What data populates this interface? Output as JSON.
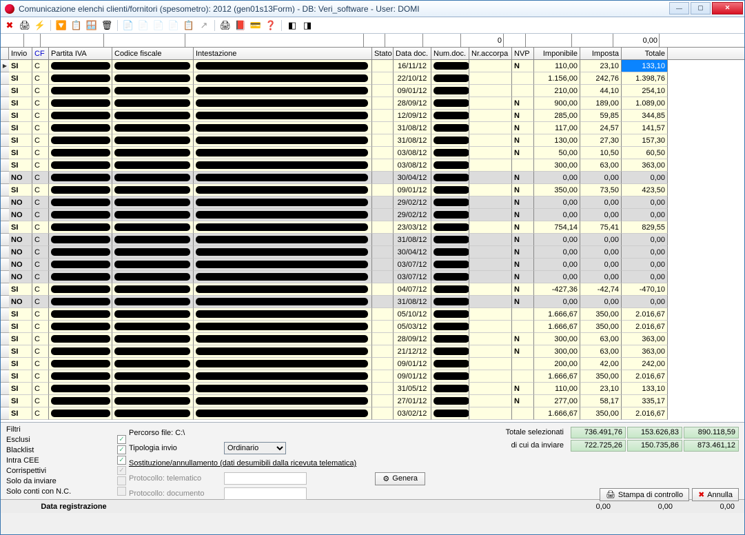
{
  "window": {
    "title": "Comunicazione elenchi clienti/fornitori (spesometro): 2012  (gen01s13Form) - DB: Veri_software - User: DOMI"
  },
  "filter_row": {
    "zero": "0",
    "zerozero": "0,00"
  },
  "columns": [
    "Invio",
    "CF",
    "Partita IVA",
    "Codice fiscale",
    "Intestazione",
    "Stato",
    "Data doc.",
    "Num.doc.",
    "Nr.accorpa",
    "NVP",
    "Imponibile",
    "Imposta",
    "Totale"
  ],
  "rows": [
    {
      "invio": "SI",
      "cf": "C",
      "data": "16/11/12",
      "nvp": "N",
      "imp": "110,00",
      "tax": "23,10",
      "tot": "133,10",
      "sel": true
    },
    {
      "invio": "SI",
      "cf": "C",
      "data": "22/10/12",
      "nvp": "",
      "imp": "1.156,00",
      "tax": "242,76",
      "tot": "1.398,76"
    },
    {
      "invio": "SI",
      "cf": "C",
      "data": "09/01/12",
      "nvp": "",
      "imp": "210,00",
      "tax": "44,10",
      "tot": "254,10"
    },
    {
      "invio": "SI",
      "cf": "C",
      "data": "28/09/12",
      "nvp": "N",
      "imp": "900,00",
      "tax": "189,00",
      "tot": "1.089,00"
    },
    {
      "invio": "SI",
      "cf": "C",
      "data": "12/09/12",
      "nvp": "N",
      "imp": "285,00",
      "tax": "59,85",
      "tot": "344,85"
    },
    {
      "invio": "SI",
      "cf": "C",
      "data": "31/08/12",
      "nvp": "N",
      "imp": "117,00",
      "tax": "24,57",
      "tot": "141,57"
    },
    {
      "invio": "SI",
      "cf": "C",
      "data": "31/08/12",
      "nvp": "N",
      "imp": "130,00",
      "tax": "27,30",
      "tot": "157,30"
    },
    {
      "invio": "SI",
      "cf": "C",
      "data": "03/08/12",
      "nvp": "N",
      "imp": "50,00",
      "tax": "10,50",
      "tot": "60,50"
    },
    {
      "invio": "SI",
      "cf": "C",
      "data": "03/08/12",
      "nvp": "",
      "imp": "300,00",
      "tax": "63,00",
      "tot": "363,00"
    },
    {
      "invio": "NO",
      "cf": "C",
      "data": "30/04/12",
      "nvp": "N",
      "imp": "0,00",
      "tax": "0,00",
      "tot": "0,00"
    },
    {
      "invio": "SI",
      "cf": "C",
      "data": "09/01/12",
      "nvp": "N",
      "imp": "350,00",
      "tax": "73,50",
      "tot": "423,50"
    },
    {
      "invio": "NO",
      "cf": "C",
      "data": "29/02/12",
      "nvp": "N",
      "imp": "0,00",
      "tax": "0,00",
      "tot": "0,00"
    },
    {
      "invio": "NO",
      "cf": "C",
      "data": "29/02/12",
      "nvp": "N",
      "imp": "0,00",
      "tax": "0,00",
      "tot": "0,00"
    },
    {
      "invio": "SI",
      "cf": "C",
      "data": "23/03/12",
      "nvp": "N",
      "imp": "754,14",
      "tax": "75,41",
      "tot": "829,55"
    },
    {
      "invio": "NO",
      "cf": "C",
      "data": "31/08/12",
      "nvp": "N",
      "imp": "0,00",
      "tax": "0,00",
      "tot": "0,00"
    },
    {
      "invio": "NO",
      "cf": "C",
      "data": "30/04/12",
      "nvp": "N",
      "imp": "0,00",
      "tax": "0,00",
      "tot": "0,00"
    },
    {
      "invio": "NO",
      "cf": "C",
      "data": "03/07/12",
      "nvp": "N",
      "imp": "0,00",
      "tax": "0,00",
      "tot": "0,00"
    },
    {
      "invio": "NO",
      "cf": "C",
      "data": "03/07/12",
      "nvp": "N",
      "imp": "0,00",
      "tax": "0,00",
      "tot": "0,00"
    },
    {
      "invio": "SI",
      "cf": "C",
      "data": "04/07/12",
      "nvp": "N",
      "imp": "-427,36",
      "tax": "-42,74",
      "tot": "-470,10"
    },
    {
      "invio": "NO",
      "cf": "C",
      "data": "31/08/12",
      "nvp": "N",
      "imp": "0,00",
      "tax": "0,00",
      "tot": "0,00"
    },
    {
      "invio": "SI",
      "cf": "C",
      "data": "05/10/12",
      "nvp": "",
      "imp": "1.666,67",
      "tax": "350,00",
      "tot": "2.016,67"
    },
    {
      "invio": "SI",
      "cf": "C",
      "data": "05/03/12",
      "nvp": "",
      "imp": "1.666,67",
      "tax": "350,00",
      "tot": "2.016,67"
    },
    {
      "invio": "SI",
      "cf": "C",
      "data": "28/09/12",
      "nvp": "N",
      "imp": "300,00",
      "tax": "63,00",
      "tot": "363,00"
    },
    {
      "invio": "SI",
      "cf": "C",
      "data": "21/12/12",
      "nvp": "N",
      "imp": "300,00",
      "tax": "63,00",
      "tot": "363,00"
    },
    {
      "invio": "SI",
      "cf": "C",
      "data": "09/01/12",
      "nvp": "",
      "imp": "200,00",
      "tax": "42,00",
      "tot": "242,00"
    },
    {
      "invio": "SI",
      "cf": "C",
      "data": "09/01/12",
      "nvp": "",
      "imp": "1.666,67",
      "tax": "350,00",
      "tot": "2.016,67"
    },
    {
      "invio": "SI",
      "cf": "C",
      "data": "31/05/12",
      "nvp": "N",
      "imp": "110,00",
      "tax": "23,10",
      "tot": "133,10"
    },
    {
      "invio": "SI",
      "cf": "C",
      "data": "27/01/12",
      "nvp": "N",
      "imp": "277,00",
      "tax": "58,17",
      "tot": "335,17"
    },
    {
      "invio": "SI",
      "cf": "C",
      "data": "03/02/12",
      "nvp": "",
      "imp": "1.666,67",
      "tax": "350,00",
      "tot": "2.016,67"
    }
  ],
  "filters": {
    "title": "Filtri",
    "items": [
      {
        "label": "Esclusi",
        "checked": true
      },
      {
        "label": "Blacklist",
        "checked": true
      },
      {
        "label": "Intra CEE",
        "checked": true
      },
      {
        "label": "Corrispettivi",
        "checked": true,
        "disabled": true
      },
      {
        "label": "Solo da inviare",
        "checked": false,
        "disabled": true
      },
      {
        "label": "Solo conti con N.C.",
        "checked": false,
        "disabled": true
      }
    ]
  },
  "center": {
    "percorso_label": "Percorso file: C:\\",
    "tipologia_label": "Tipologia invio",
    "tipologia_value": "Ordinario",
    "sost_label": "Sostituzione/annullamento (dati desumibili dalla ricevuta telematica)",
    "prot_tel_label": "Protocollo: telematico",
    "prot_doc_label": "Protocollo: documento",
    "genera_label": "Genera"
  },
  "totals": {
    "sel_label": "Totale selezionati",
    "sel_imp": "736.491,76",
    "sel_tax": "153.626,83",
    "sel_tot": "890.118,59",
    "inv_label": "di cui da inviare",
    "inv_imp": "722.725,26",
    "inv_tax": "150.735,86",
    "inv_tot": "873.461,12"
  },
  "buttons": {
    "stampa": "Stampa di controllo",
    "annulla": "Annulla"
  },
  "footer": {
    "label": "Data registrazione",
    "v1": "0,00",
    "v2": "0,00",
    "v3": "0,00"
  }
}
